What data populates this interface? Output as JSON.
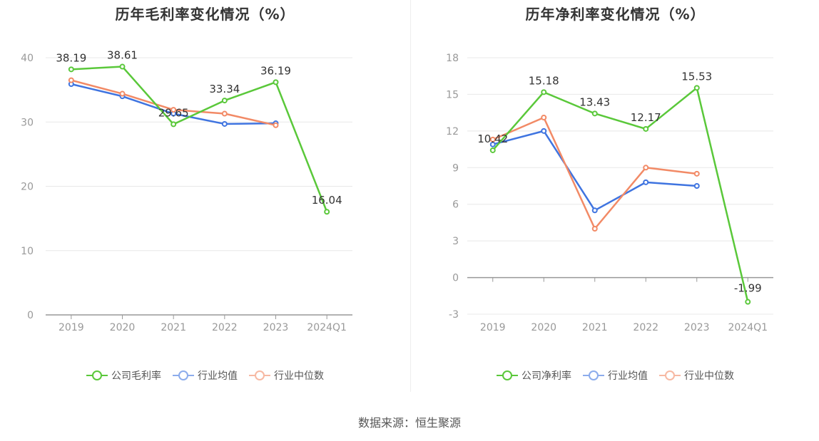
{
  "source": "数据来源：恒生聚源",
  "colors": {
    "company": "#5ac83a",
    "avg": "#3f74e0",
    "median": "#f28a66",
    "axis": "#999999",
    "grid": "#e8e8e8"
  },
  "chart_data": [
    {
      "type": "line",
      "title": "历年毛利率变化情况（%）",
      "categories": [
        "2019",
        "2020",
        "2021",
        "2022",
        "2023",
        "2024Q1"
      ],
      "ylim": [
        0,
        40
      ],
      "yticks": [
        0,
        10,
        20,
        30,
        40
      ],
      "grid": true,
      "legend_position": "bottom",
      "series": [
        {
          "name": "公司毛利率",
          "color_key": "company",
          "labeled": true,
          "values": [
            38.19,
            38.61,
            29.65,
            33.34,
            36.19,
            16.04
          ],
          "labels": [
            "38.19",
            "38.61",
            "29.65",
            "33.34",
            "36.19",
            "16.04"
          ]
        },
        {
          "name": "行业均值",
          "color_key": "avg",
          "labeled": false,
          "values": [
            35.9,
            34.0,
            31.3,
            29.7,
            29.8,
            null
          ]
        },
        {
          "name": "行业中位数",
          "color_key": "median",
          "labeled": false,
          "values": [
            36.5,
            34.4,
            31.9,
            31.3,
            29.5,
            null
          ]
        }
      ]
    },
    {
      "type": "line",
      "title": "历年净利率变化情况（%）",
      "categories": [
        "2019",
        "2020",
        "2021",
        "2022",
        "2023",
        "2024Q1"
      ],
      "ylim": [
        -3,
        18
      ],
      "yticks": [
        -3,
        0,
        3,
        6,
        9,
        12,
        15,
        18
      ],
      "grid": true,
      "legend_position": "bottom",
      "series": [
        {
          "name": "公司净利率",
          "color_key": "company",
          "labeled": true,
          "values": [
            10.42,
            15.18,
            13.43,
            12.17,
            15.53,
            -1.99
          ],
          "labels": [
            "10.42",
            "15.18",
            "13.43",
            "12.17",
            "15.53",
            "-1.99"
          ]
        },
        {
          "name": "行业均值",
          "color_key": "avg",
          "labeled": false,
          "values": [
            10.9,
            12.0,
            5.5,
            7.8,
            7.5,
            null
          ]
        },
        {
          "name": "行业中位数",
          "color_key": "median",
          "labeled": false,
          "values": [
            11.3,
            13.1,
            4.0,
            9.0,
            8.5,
            null
          ]
        }
      ]
    }
  ]
}
